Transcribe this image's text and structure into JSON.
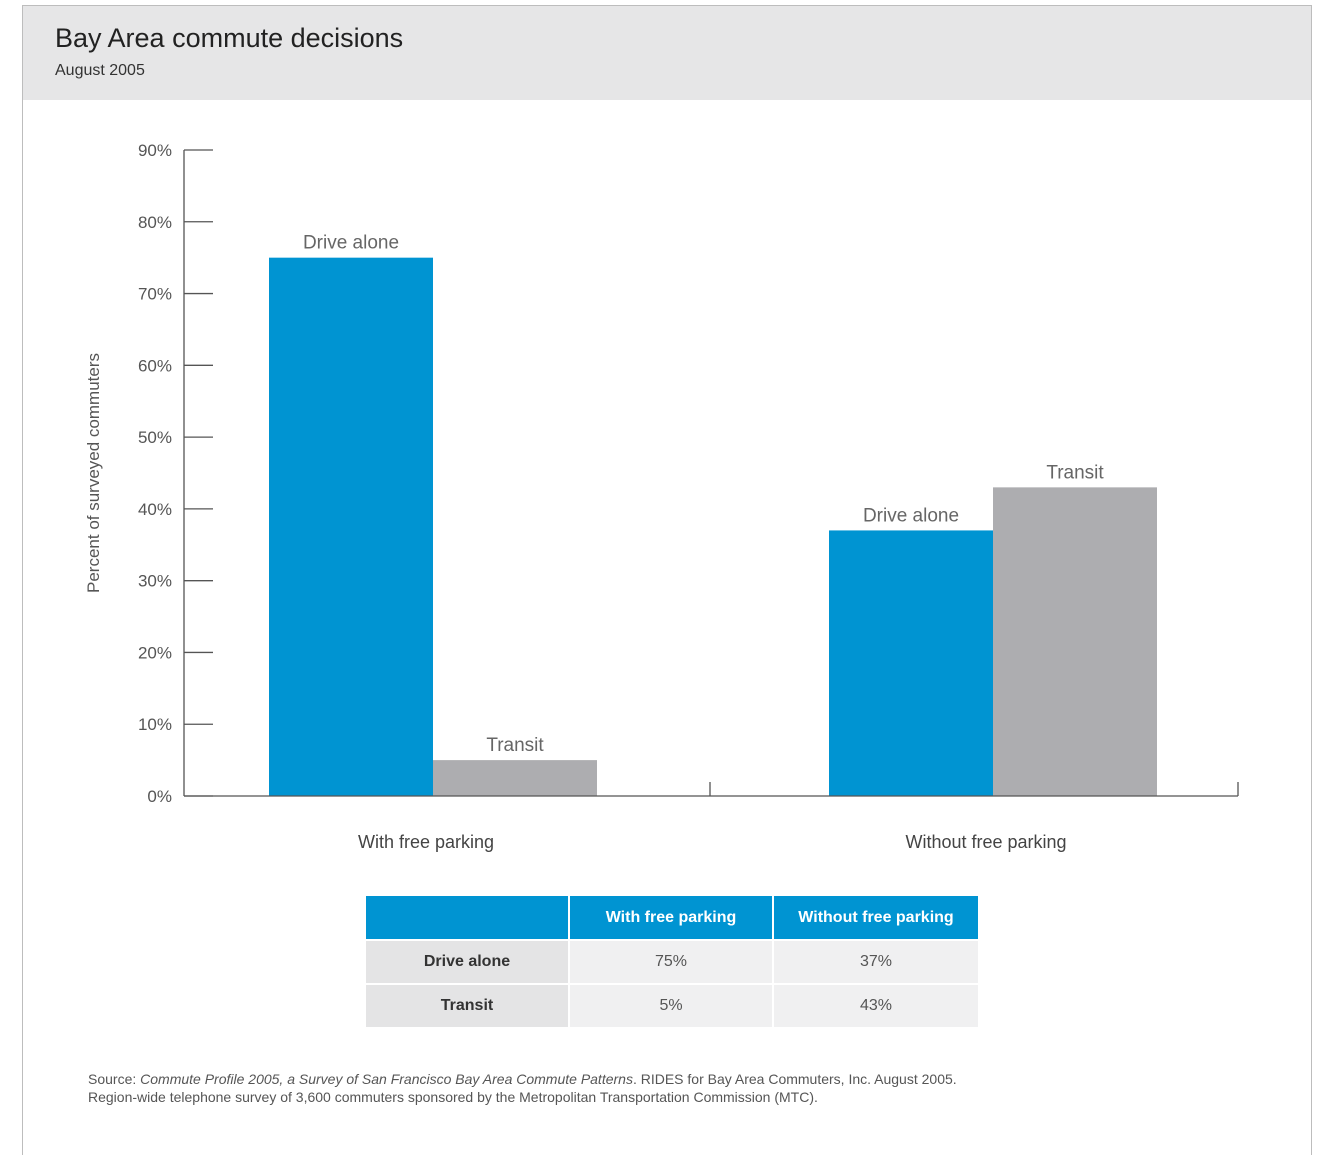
{
  "header": {
    "title": "Bay Area commute decisions",
    "subtitle": "August 2005"
  },
  "chart_data": {
    "type": "bar",
    "ylabel": "Percent of surveyed commuters",
    "ylim": [
      0,
      90
    ],
    "yticks": [
      0,
      10,
      20,
      30,
      40,
      50,
      60,
      70,
      80,
      90
    ],
    "ytick_labels": [
      "0%",
      "10%",
      "20%",
      "30%",
      "40%",
      "50%",
      "60%",
      "70%",
      "80%",
      "90%"
    ],
    "categories": [
      "With free parking",
      "Without free parking"
    ],
    "series": [
      {
        "name": "Drive alone",
        "values": [
          75,
          37
        ],
        "color": "#0094d2"
      },
      {
        "name": "Transit",
        "values": [
          5,
          43
        ],
        "color": "#adadb0"
      }
    ],
    "grid": false,
    "legend": "none (bars labeled directly)"
  },
  "table": {
    "columns": [
      "",
      "With free parking",
      "Without free parking"
    ],
    "rows": [
      {
        "label": "Drive alone",
        "values": [
          "75%",
          "37%"
        ]
      },
      {
        "label": "Transit",
        "values": [
          "5%",
          "43%"
        ]
      }
    ]
  },
  "source": {
    "prefix": "Source: ",
    "title": "Commute Profile 2005, a Survey of San Francisco Bay Area Commute Patterns",
    "suffix": ". RIDES for Bay Area Commuters, Inc. August 2005.",
    "line2": "Region-wide telephone survey of 3,600 commuters sponsored by the Metropolitan Transportation Commission (MTC)."
  }
}
